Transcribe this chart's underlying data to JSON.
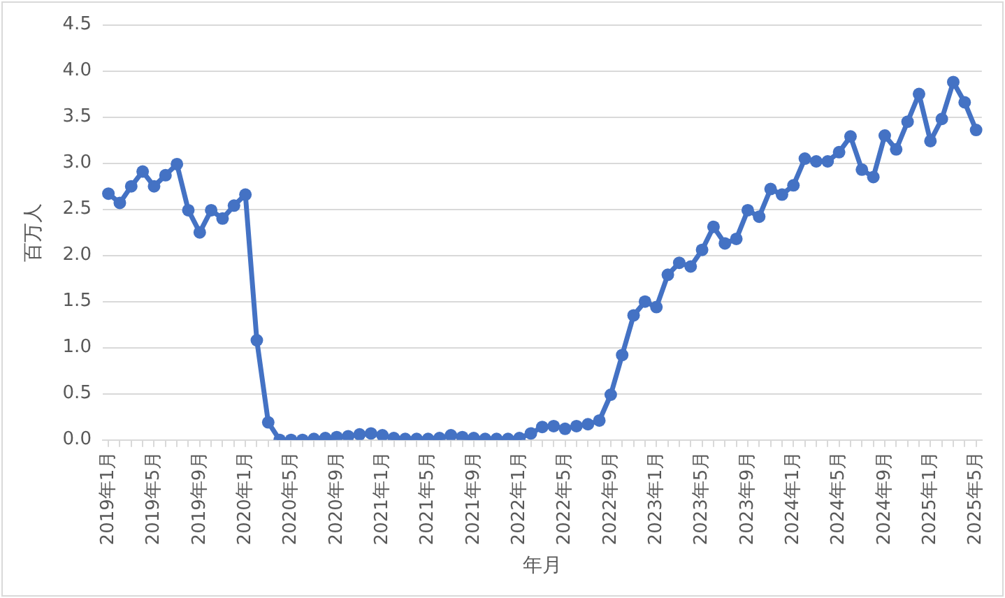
{
  "chart_data": {
    "type": "line",
    "xlabel": "年月",
    "ylabel": "百万人",
    "categories": [
      "2019年1月",
      null,
      null,
      null,
      "2019年5月",
      null,
      null,
      null,
      "2019年9月",
      null,
      null,
      null,
      "2020年1月",
      null,
      null,
      null,
      "2020年5月",
      null,
      null,
      null,
      "2020年9月",
      null,
      null,
      null,
      "2021年1月",
      null,
      null,
      null,
      "2021年5月",
      null,
      null,
      null,
      "2021年9月",
      null,
      null,
      null,
      "2022年1月",
      null,
      null,
      null,
      "2022年5月",
      null,
      null,
      null,
      "2022年9月",
      null,
      null,
      null,
      "2023年1月",
      null,
      null,
      null,
      "2023年5月",
      null,
      null,
      null,
      "2023年9月",
      null,
      null,
      null,
      "2024年1月",
      null,
      null,
      null,
      "2024年5月",
      null,
      null,
      null,
      "2024年9月",
      null,
      null,
      null,
      "2025年1月",
      null,
      null,
      null,
      "2025年5月"
    ],
    "series": [
      {
        "color": "#4472c4",
        "values": [
          2.67,
          2.57,
          2.75,
          2.91,
          2.75,
          2.87,
          2.99,
          2.49,
          2.25,
          2.49,
          2.4,
          2.54,
          2.66,
          1.08,
          0.19,
          0.0,
          0.0,
          0.0,
          0.01,
          0.02,
          0.03,
          0.04,
          0.06,
          0.07,
          0.05,
          0.02,
          0.01,
          0.01,
          0.01,
          0.02,
          0.05,
          0.03,
          0.02,
          0.01,
          0.01,
          0.01,
          0.02,
          0.07,
          0.14,
          0.15,
          0.12,
          0.15,
          0.17,
          0.21,
          0.49,
          0.92,
          1.35,
          1.5,
          1.44,
          1.79,
          1.92,
          1.88,
          2.06,
          2.31,
          2.13,
          2.18,
          2.49,
          2.42,
          2.72,
          2.66,
          2.76,
          3.05,
          3.02,
          3.02,
          3.12,
          3.29,
          2.93,
          2.85,
          3.3,
          3.15,
          3.45,
          3.75,
          3.24,
          3.48,
          3.88,
          3.66,
          3.36
        ]
      }
    ],
    "ylim": [
      0,
      4.5
    ],
    "yticks": [
      {
        "value": 0,
        "label": "0.0"
      },
      0.5,
      {
        "value": 1,
        "label": "1.0"
      },
      1.5,
      {
        "value": 2,
        "label": "2.0"
      },
      2.5,
      {
        "value": 3,
        "label": "3.0"
      },
      3.5,
      {
        "value": 4,
        "label": "4.0"
      },
      4.5
    ],
    "grid": "y",
    "legend": false,
    "marker": "circle",
    "line_style": "solid"
  }
}
